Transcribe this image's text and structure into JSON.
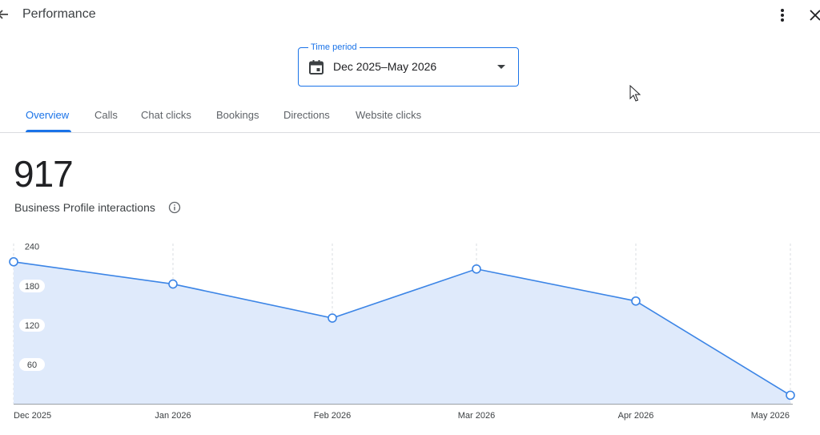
{
  "header": {
    "title": "Performance",
    "back_icon": "arrow-back-icon",
    "more_icon": "more-vert-icon",
    "close_icon": "close-icon"
  },
  "time_period": {
    "label": "Time period",
    "value": "Dec 2025–May 2026",
    "icon": "calendar-icon"
  },
  "tabs": [
    {
      "label": "Overview",
      "active": true
    },
    {
      "label": "Calls",
      "active": false
    },
    {
      "label": "Chat clicks",
      "active": false
    },
    {
      "label": "Bookings",
      "active": false
    },
    {
      "label": "Directions",
      "active": false
    },
    {
      "label": "Website clicks",
      "active": false
    }
  ],
  "metric": {
    "value": "917",
    "label": "Business Profile interactions"
  },
  "colors": {
    "accent": "#1a73e8",
    "line": "#3c85e6",
    "area_fill": "#dfeafb"
  },
  "chart_data": {
    "type": "area",
    "categories": [
      "Dec 2025",
      "Jan 2026",
      "Feb 2026",
      "Mar 2026",
      "Apr 2026",
      "May 2026"
    ],
    "values": [
      217,
      183,
      131,
      206,
      157,
      13
    ],
    "ylim": [
      0,
      240
    ],
    "yticks": [
      60,
      120,
      180,
      240
    ],
    "grid": "vertical-dashed",
    "legend": "none"
  }
}
